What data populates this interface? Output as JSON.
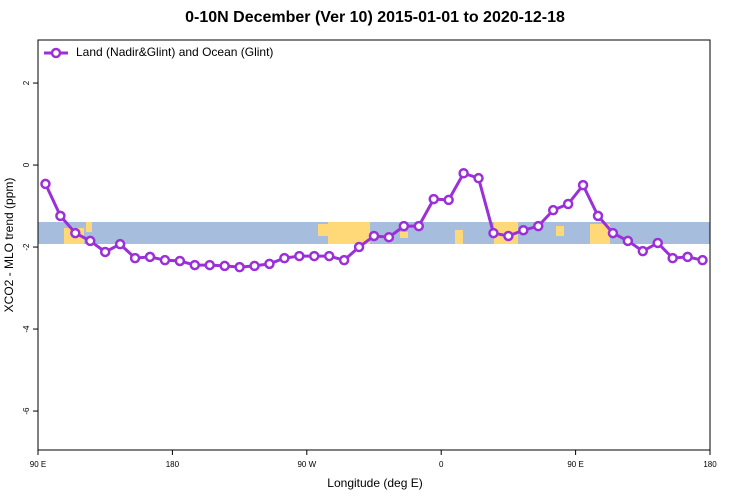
{
  "chart_data": {
    "type": "line",
    "title": "0-10N December (Ver 10)   2015-01-01 to 2020-12-18",
    "x_label": "Longitude (deg E)",
    "y_label": "XCO2 - MLO trend (ppm)",
    "x": [
      95,
      105,
      115,
      125,
      135,
      145,
      155,
      165,
      175,
      185,
      195,
      205,
      215,
      225,
      235,
      245,
      255,
      265,
      275,
      285,
      295,
      305,
      315,
      325,
      335,
      345,
      355,
      365,
      375,
      385,
      395,
      405,
      415,
      425,
      435,
      445,
      455,
      465,
      475,
      485,
      495,
      505,
      515,
      525,
      535
    ],
    "series": [
      {
        "name": "Land (Nadir&Glint) and Ocean (Glint)",
        "color": "#9b30d9",
        "values": [
          -0.46,
          -1.24,
          -1.66,
          -1.85,
          -2.12,
          -1.93,
          -2.27,
          -2.24,
          -2.32,
          -2.34,
          -2.44,
          -2.44,
          -2.46,
          -2.49,
          -2.46,
          -2.41,
          -2.27,
          -2.22,
          -2.22,
          -2.22,
          -2.32,
          -2.0,
          -1.73,
          -1.76,
          -1.49,
          -1.49,
          -0.83,
          -0.85,
          -0.2,
          -0.32,
          -1.66,
          -1.73,
          -1.59,
          -1.49,
          -1.1,
          -0.95,
          -0.49,
          -1.24,
          -1.66,
          -1.85,
          -2.1,
          -1.9,
          -2.27,
          -2.24,
          -2.32
        ]
      }
    ],
    "xlim": [
      90,
      540
    ],
    "xticks": [
      {
        "value": 90,
        "label": "90 E"
      },
      180,
      {
        "value": 270,
        "label": "90 W"
      },
      {
        "value": 360,
        "label": "0"
      },
      {
        "value": 450,
        "label": "90 E"
      },
      {
        "value": 540,
        "label": "180"
      }
    ],
    "ylim": [
      -6.95,
      3.05
    ],
    "yticks": [
      -6,
      -4,
      -2,
      0,
      2
    ],
    "legend": "top-left"
  }
}
